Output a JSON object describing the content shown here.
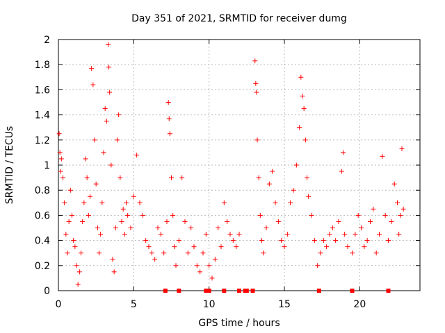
{
  "chart_data": {
    "type": "scatter",
    "title": "Day 351 of 2021, SRMTID for receiver dumg",
    "xlabel": "GPS time / hours",
    "ylabel": "SRMTID / TECUs",
    "xlim": [
      0,
      24
    ],
    "ylim": [
      0,
      2
    ],
    "xticks": [
      0,
      5,
      10,
      15,
      20
    ],
    "yticks": [
      0,
      0.2,
      0.4,
      0.6,
      0.8,
      1,
      1.2,
      1.4,
      1.6,
      1.8,
      2
    ],
    "xtick_labels": [
      "0",
      "5",
      "10",
      "15",
      "20"
    ],
    "ytick_labels": [
      "0",
      "0.2",
      "0.4",
      "0.6",
      "0.8",
      "1",
      "1.2",
      "1.4",
      "1.6",
      "1.8",
      "2"
    ],
    "grid": true,
    "marker": "+",
    "color": "#ff0000",
    "series": [
      {
        "name": "srmtid",
        "points": [
          [
            0.05,
            1.25
          ],
          [
            0.1,
            1.1
          ],
          [
            0.15,
            0.95
          ],
          [
            0.2,
            1.05
          ],
          [
            0.3,
            0.9
          ],
          [
            0.4,
            0.7
          ],
          [
            0.5,
            0.45
          ],
          [
            0.6,
            0.3
          ],
          [
            0.7,
            0.55
          ],
          [
            0.8,
            0.8
          ],
          [
            0.9,
            0.6
          ],
          [
            1.0,
            0.4
          ],
          [
            1.1,
            0.35
          ],
          [
            1.2,
            0.2
          ],
          [
            1.3,
            0.05
          ],
          [
            1.4,
            0.15
          ],
          [
            1.5,
            0.3
          ],
          [
            1.6,
            0.55
          ],
          [
            1.7,
            0.7
          ],
          [
            1.8,
            1.05
          ],
          [
            1.9,
            0.9
          ],
          [
            2.0,
            0.6
          ],
          [
            2.1,
            0.75
          ],
          [
            2.2,
            1.77
          ],
          [
            2.3,
            1.64
          ],
          [
            2.4,
            1.2
          ],
          [
            2.5,
            0.85
          ],
          [
            2.6,
            0.5
          ],
          [
            2.7,
            0.3
          ],
          [
            2.8,
            0.45
          ],
          [
            2.9,
            0.7
          ],
          [
            3.0,
            1.1
          ],
          [
            3.1,
            1.45
          ],
          [
            3.2,
            1.35
          ],
          [
            3.3,
            1.96
          ],
          [
            3.35,
            1.78
          ],
          [
            3.4,
            1.58
          ],
          [
            3.5,
            1.0
          ],
          [
            3.6,
            0.25
          ],
          [
            3.7,
            0.15
          ],
          [
            3.8,
            0.5
          ],
          [
            3.9,
            1.2
          ],
          [
            4.0,
            1.4
          ],
          [
            4.1,
            0.9
          ],
          [
            4.2,
            0.55
          ],
          [
            4.3,
            0.65
          ],
          [
            4.4,
            0.45
          ],
          [
            4.5,
            0.7
          ],
          [
            4.6,
            0.6
          ],
          [
            4.8,
            0.5
          ],
          [
            5.0,
            0.75
          ],
          [
            5.2,
            1.08
          ],
          [
            5.4,
            0.7
          ],
          [
            5.6,
            0.6
          ],
          [
            5.8,
            0.4
          ],
          [
            6.0,
            0.35
          ],
          [
            6.2,
            0.3
          ],
          [
            6.4,
            0.25
          ],
          [
            6.6,
            0.5
          ],
          [
            6.8,
            0.45
          ],
          [
            7.0,
            0.3
          ],
          [
            7.2,
            0.55
          ],
          [
            7.3,
            1.5
          ],
          [
            7.35,
            1.37
          ],
          [
            7.4,
            1.25
          ],
          [
            7.5,
            0.9
          ],
          [
            7.6,
            0.6
          ],
          [
            7.7,
            0.35
          ],
          [
            7.8,
            0.2
          ],
          [
            8.0,
            0.4
          ],
          [
            8.2,
            0.9
          ],
          [
            8.4,
            0.55
          ],
          [
            8.6,
            0.3
          ],
          [
            8.8,
            0.5
          ],
          [
            9.0,
            0.35
          ],
          [
            9.2,
            0.2
          ],
          [
            9.4,
            0.15
          ],
          [
            9.6,
            0.3
          ],
          [
            9.8,
            0.45
          ],
          [
            10.0,
            0.2
          ],
          [
            10.2,
            0.1
          ],
          [
            10.4,
            0.25
          ],
          [
            10.6,
            0.5
          ],
          [
            10.8,
            0.35
          ],
          [
            11.0,
            0.7
          ],
          [
            11.2,
            0.55
          ],
          [
            11.4,
            0.45
          ],
          [
            11.6,
            0.4
          ],
          [
            11.8,
            0.35
          ],
          [
            12.0,
            0.45
          ],
          [
            13.05,
            1.83
          ],
          [
            13.1,
            1.65
          ],
          [
            13.15,
            1.58
          ],
          [
            13.2,
            1.2
          ],
          [
            13.3,
            0.9
          ],
          [
            13.4,
            0.6
          ],
          [
            13.5,
            0.4
          ],
          [
            13.6,
            0.3
          ],
          [
            13.8,
            0.5
          ],
          [
            14.0,
            0.85
          ],
          [
            14.2,
            0.95
          ],
          [
            14.4,
            0.7
          ],
          [
            14.6,
            0.55
          ],
          [
            14.8,
            0.4
          ],
          [
            15.0,
            0.35
          ],
          [
            15.2,
            0.45
          ],
          [
            15.4,
            0.7
          ],
          [
            15.6,
            0.8
          ],
          [
            15.8,
            1.0
          ],
          [
            16.0,
            1.3
          ],
          [
            16.1,
            1.7
          ],
          [
            16.2,
            1.55
          ],
          [
            16.3,
            1.45
          ],
          [
            16.4,
            1.2
          ],
          [
            16.5,
            0.9
          ],
          [
            16.6,
            0.75
          ],
          [
            16.8,
            0.6
          ],
          [
            17.0,
            0.4
          ],
          [
            17.2,
            0.2
          ],
          [
            17.4,
            0.3
          ],
          [
            17.6,
            0.4
          ],
          [
            17.8,
            0.35
          ],
          [
            18.0,
            0.45
          ],
          [
            18.2,
            0.5
          ],
          [
            18.4,
            0.4
          ],
          [
            18.6,
            0.55
          ],
          [
            18.8,
            0.95
          ],
          [
            18.9,
            1.1
          ],
          [
            19.0,
            0.45
          ],
          [
            19.2,
            0.35
          ],
          [
            19.5,
            0.3
          ],
          [
            19.7,
            0.45
          ],
          [
            19.9,
            0.6
          ],
          [
            20.1,
            0.5
          ],
          [
            20.3,
            0.35
          ],
          [
            20.5,
            0.4
          ],
          [
            20.7,
            0.55
          ],
          [
            20.9,
            0.65
          ],
          [
            21.1,
            0.3
          ],
          [
            21.3,
            0.45
          ],
          [
            21.5,
            1.07
          ],
          [
            21.7,
            0.6
          ],
          [
            21.9,
            0.4
          ],
          [
            22.1,
            0.55
          ],
          [
            22.3,
            0.85
          ],
          [
            22.5,
            0.7
          ],
          [
            22.6,
            0.45
          ],
          [
            22.7,
            0.6
          ],
          [
            22.8,
            1.13
          ],
          [
            22.9,
            0.65
          ]
        ]
      }
    ],
    "baseline_markers_x": [
      7.1,
      8.0,
      9.8,
      10.0,
      11.0,
      12.0,
      12.4,
      12.5,
      12.9,
      17.3,
      19.5,
      21.9
    ]
  }
}
